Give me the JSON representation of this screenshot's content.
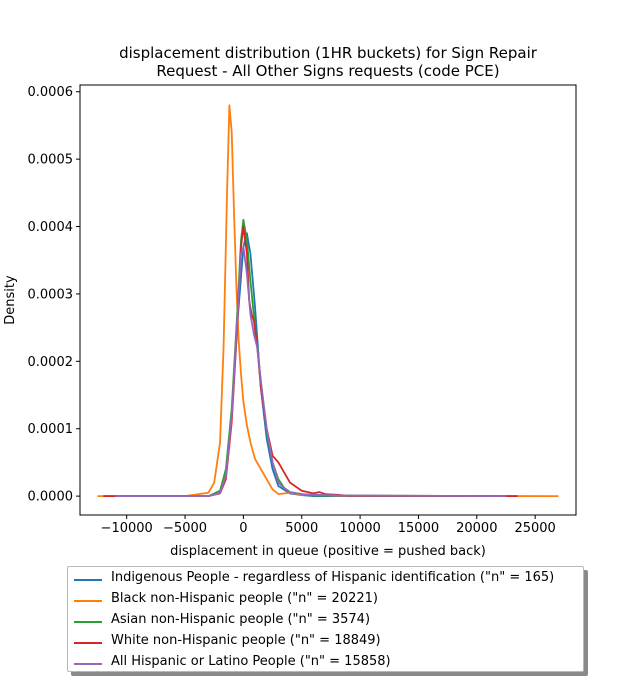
{
  "chart_data": {
    "type": "line",
    "title": "displacement distribution (1HR buckets) for Sign Repair\nRequest - All Other Signs requests (code PCE)",
    "xlabel": "displacement in queue (positive = pushed back)",
    "ylabel": "Density",
    "xlim": [
      -14000,
      28500
    ],
    "ylim": [
      -2.8e-05,
      0.00061
    ],
    "x_ticks": [
      -10000,
      -5000,
      0,
      5000,
      10000,
      15000,
      20000,
      25000
    ],
    "x_tick_labels": [
      "−10000",
      "−5000",
      "0",
      "5000",
      "10000",
      "15000",
      "20000",
      "25000"
    ],
    "y_ticks": [
      0,
      0.0001,
      0.0002,
      0.0003,
      0.0004,
      0.0005,
      0.0006
    ],
    "y_tick_labels": [
      "0.0000",
      "0.0001",
      "0.0002",
      "0.0003",
      "0.0004",
      "0.0005",
      "0.0006"
    ],
    "grid": false,
    "legend_position": "below",
    "series": [
      {
        "name": "Indigenous People - regardless of Hispanic identification (\"n\" = 165)",
        "color": "#1f77b4",
        "x": [
          -12000,
          -3000,
          -2000,
          -1500,
          -1000,
          -500,
          0,
          300,
          600,
          1000,
          1500,
          2000,
          2500,
          3000,
          4000,
          5000,
          6000,
          23500
        ],
        "y": [
          0,
          0,
          5e-06,
          3e-05,
          0.00012,
          0.00026,
          0.00037,
          0.00039,
          0.00036,
          0.00028,
          0.00016,
          8.5e-05,
          4e-05,
          1.5e-05,
          4e-06,
          1.5e-06,
          0,
          0
        ]
      },
      {
        "name": "Black non-Hispanic people (\"n\" = 20221)",
        "color": "#ff7f0e",
        "x": [
          -12500,
          -5000,
          -3000,
          -2500,
          -2000,
          -1700,
          -1400,
          -1200,
          -1000,
          -800,
          -600,
          -400,
          -200,
          0,
          300,
          600,
          1000,
          1500,
          2000,
          2500,
          3000,
          4000,
          5000,
          8000,
          27000
        ],
        "y": [
          0,
          0,
          5e-06,
          2e-05,
          8e-05,
          0.00022,
          0.00045,
          0.00058,
          0.00054,
          0.00042,
          0.00031,
          0.00023,
          0.00018,
          0.00014,
          0.000105,
          8e-05,
          5.5e-05,
          4e-05,
          2.5e-05,
          1e-05,
          3e-06,
          5e-06,
          2e-06,
          5e-07,
          0
        ]
      },
      {
        "name": "Asian non-Hispanic people (\"n\" = 3574)",
        "color": "#2ca02c",
        "x": [
          -11000,
          -3000,
          -2000,
          -1500,
          -1000,
          -500,
          -200,
          0,
          300,
          600,
          1000,
          1500,
          2000,
          2500,
          3000,
          3500,
          4000,
          5000,
          6000,
          22000
        ],
        "y": [
          0,
          0,
          8e-06,
          4e-05,
          0.00013,
          0.00028,
          0.00038,
          0.00041,
          0.00038,
          0.00032,
          0.00025,
          0.00017,
          9.5e-05,
          5e-05,
          2.5e-05,
          1.2e-05,
          6e-06,
          3e-06,
          1e-06,
          0
        ]
      },
      {
        "name": "White non-Hispanic people (\"n\" = 18849)",
        "color": "#d62728",
        "x": [
          -12000,
          -3000,
          -2000,
          -1500,
          -1000,
          -500,
          -200,
          0,
          300,
          500,
          700,
          900,
          1200,
          1500,
          2000,
          2500,
          3000,
          3500,
          4000,
          5000,
          6000,
          6500,
          7000,
          8000,
          9000,
          23500
        ],
        "y": [
          0,
          0,
          4e-06,
          2.5e-05,
          0.00011,
          0.00026,
          0.00037,
          0.0004,
          0.00036,
          0.00029,
          0.00027,
          0.00026,
          0.00022,
          0.00016,
          0.0001,
          6e-05,
          5e-05,
          3.5e-05,
          2e-05,
          8e-06,
          4e-06,
          6e-06,
          3e-06,
          2e-06,
          5e-07,
          0
        ]
      },
      {
        "name": "All Hispanic or Latino People (\"n\" = 15858)",
        "color": "#9467bd",
        "x": [
          -11000,
          -3000,
          -2000,
          -1500,
          -1000,
          -500,
          -200,
          0,
          300,
          600,
          900,
          1200,
          1500,
          2000,
          2500,
          3000,
          3500,
          4000,
          5000,
          6000,
          8000,
          22500
        ],
        "y": [
          0,
          0,
          5e-06,
          3e-05,
          0.00012,
          0.00027,
          0.00036,
          0.00037,
          0.00033,
          0.00027,
          0.00024,
          0.00022,
          0.00017,
          0.0001,
          5e-05,
          2e-05,
          1.2e-05,
          6e-06,
          3e-06,
          2e-06,
          1e-06,
          0
        ]
      }
    ]
  }
}
